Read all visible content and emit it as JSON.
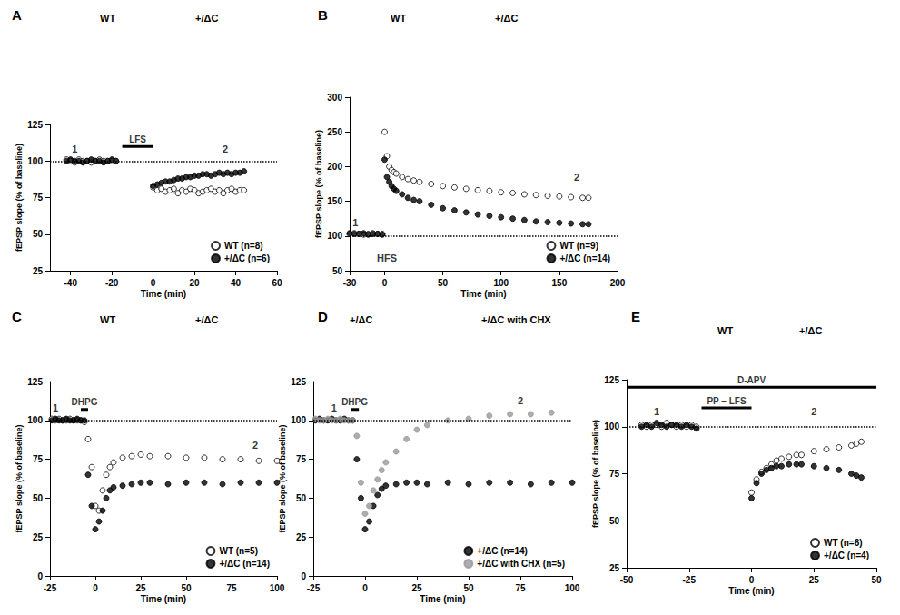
{
  "chart_data": [
    {
      "type": "scatter",
      "title": "A",
      "trace_labels": [
        "WT",
        "+/ΔC"
      ],
      "x_label": "Time (min)",
      "y_label": "fEPSP slope (% of baseline)",
      "xlim": [
        -50,
        60
      ],
      "xticks": [
        -40,
        -20,
        0,
        20,
        40,
        60
      ],
      "ylim": [
        25,
        125
      ],
      "yticks": [
        25,
        50,
        75,
        100,
        125
      ],
      "hline": 100,
      "legend": "lower right",
      "annotations": [
        {
          "text": "1",
          "x": -38,
          "y": 108
        },
        {
          "text": "2",
          "x": 35,
          "y": 108
        }
      ],
      "treatments": [
        {
          "text": "LFS",
          "x": [
            -15,
            0
          ],
          "y": 110
        }
      ],
      "x": [
        -42,
        -40,
        -38,
        -36,
        -34,
        -32,
        -30,
        -28,
        -26,
        -24,
        -22,
        -20,
        -18,
        0,
        2,
        4,
        6,
        8,
        10,
        12,
        14,
        16,
        18,
        20,
        22,
        24,
        26,
        28,
        30,
        32,
        34,
        36,
        38,
        40,
        42,
        44
      ],
      "series": [
        {
          "name": "WT (n=8)",
          "color": "#000000",
          "marker": "circle_open",
          "values": [
            101,
            100,
            99,
            101,
            100,
            100,
            99,
            100,
            101,
            100,
            100,
            100,
            100,
            82,
            80,
            81,
            79,
            80,
            81,
            78,
            80,
            79,
            81,
            80,
            78,
            79,
            80,
            81,
            79,
            80,
            78,
            80,
            81,
            79,
            80,
            80
          ]
        },
        {
          "name": "+/ΔC (n=6)",
          "color": "#000000",
          "marker": "circle",
          "values": [
            100,
            101,
            100,
            100,
            99,
            100,
            101,
            100,
            100,
            99,
            100,
            101,
            100,
            83,
            84,
            85,
            86,
            86,
            87,
            88,
            88,
            89,
            89,
            90,
            90,
            91,
            91,
            90,
            91,
            92,
            91,
            92,
            91,
            92,
            92,
            93
          ]
        }
      ]
    },
    {
      "type": "scatter",
      "title": "B",
      "trace_labels": [
        "WT",
        "+/ΔC"
      ],
      "x_label": "Time (min)",
      "y_label": "fEPSP slope (% of baseline)",
      "xlim": [
        -30,
        200
      ],
      "xticks": [
        -30,
        0,
        50,
        100,
        150,
        200
      ],
      "ylim": [
        50,
        300
      ],
      "yticks": [
        50,
        100,
        150,
        200,
        250,
        300
      ],
      "hline": 100,
      "legend": "lower right",
      "annotations": [
        {
          "text": "1",
          "x": -25,
          "y": 120
        },
        {
          "text": "2",
          "x": 165,
          "y": 185
        },
        {
          "text": "HFS",
          "x": 2,
          "y": 68
        }
      ],
      "treatments": [],
      "x": [
        -30,
        -26,
        -22,
        -18,
        -14,
        -10,
        -6,
        -2,
        0,
        2,
        4,
        6,
        8,
        10,
        15,
        20,
        25,
        30,
        40,
        50,
        60,
        70,
        80,
        90,
        100,
        110,
        120,
        130,
        140,
        150,
        160,
        170,
        175
      ],
      "series": [
        {
          "name": "WT (n=9)",
          "color": "#000000",
          "marker": "circle_open",
          "values": [
            103,
            104,
            103,
            102,
            103,
            104,
            103,
            103,
            250,
            215,
            200,
            195,
            192,
            190,
            185,
            182,
            180,
            178,
            175,
            172,
            170,
            168,
            166,
            165,
            163,
            162,
            160,
            159,
            158,
            157,
            156,
            155,
            155
          ]
        },
        {
          "name": "+/ΔC (n=14)",
          "color": "#000000",
          "marker": "circle",
          "values": [
            104,
            103,
            103,
            104,
            102,
            103,
            103,
            102,
            210,
            185,
            178,
            172,
            168,
            165,
            160,
            155,
            152,
            150,
            145,
            140,
            137,
            134,
            131,
            129,
            127,
            125,
            123,
            121,
            120,
            119,
            118,
            117,
            117
          ]
        }
      ]
    },
    {
      "type": "scatter",
      "title": "C",
      "trace_labels": [
        "WT",
        "+/ΔC"
      ],
      "x_label": "Time (min)",
      "y_label": "fEPSP slope (% of baseline)",
      "xlim": [
        -25,
        100
      ],
      "xticks": [
        -25,
        0,
        25,
        50,
        75,
        100
      ],
      "ylim": [
        0,
        125
      ],
      "yticks": [
        0,
        25,
        50,
        75,
        100,
        125
      ],
      "hline": 100,
      "legend": "lower right",
      "annotations": [
        {
          "text": "1",
          "x": -22,
          "y": 108
        },
        {
          "text": "2",
          "x": 88,
          "y": 84
        }
      ],
      "treatments": [
        {
          "text": "DHPG",
          "x": [
            -8,
            -4
          ],
          "y": 107
        }
      ],
      "x": [
        -24,
        -22,
        -20,
        -18,
        -16,
        -14,
        -12,
        -10,
        -8,
        -6,
        -4,
        -2,
        0,
        2,
        4,
        6,
        8,
        10,
        15,
        20,
        25,
        30,
        40,
        50,
        60,
        70,
        80,
        90,
        100
      ],
      "series": [
        {
          "name": "WT (n=5)",
          "color": "#000000",
          "marker": "circle_open",
          "values": [
            101,
            100,
            101,
            100,
            100,
            101,
            100,
            100,
            100,
            99,
            88,
            70,
            45,
            42,
            55,
            65,
            70,
            73,
            76,
            77,
            78,
            77,
            77,
            76,
            76,
            75,
            75,
            74,
            74
          ]
        },
        {
          "name": "+/ΔC (n=14)",
          "color": "#000000",
          "marker": "circle",
          "values": [
            100,
            101,
            100,
            100,
            101,
            100,
            100,
            101,
            100,
            100,
            65,
            45,
            30,
            35,
            42,
            50,
            55,
            57,
            58,
            59,
            60,
            60,
            59,
            60,
            60,
            59,
            60,
            60,
            60
          ]
        }
      ]
    },
    {
      "type": "scatter",
      "title": "D",
      "trace_labels": [
        "+/ΔC",
        "+/ΔC with CHX"
      ],
      "x_label": "Time (min)",
      "y_label": "fEPSP slope (% of baseline)",
      "xlim": [
        -25,
        100
      ],
      "xticks": [
        -25,
        0,
        25,
        50,
        75,
        100
      ],
      "ylim": [
        0,
        125
      ],
      "yticks": [
        0,
        25,
        50,
        75,
        100,
        125
      ],
      "hline": 100,
      "legend": "lower right",
      "annotations": [
        {
          "text": "1",
          "x": -15,
          "y": 108
        },
        {
          "text": "2",
          "x": 75,
          "y": 113
        }
      ],
      "treatments": [
        {
          "text": "DHPG",
          "x": [
            -7,
            -3
          ],
          "y": 107
        }
      ],
      "x": [
        -24,
        -22,
        -20,
        -18,
        -16,
        -14,
        -12,
        -10,
        -8,
        -6,
        -4,
        -2,
        0,
        2,
        4,
        6,
        8,
        10,
        15,
        20,
        25,
        30,
        40,
        50,
        60,
        70,
        80,
        90,
        100
      ],
      "series": [
        {
          "name": "+/ΔC (n=14)",
          "color": "#000000",
          "marker": "circle",
          "values": [
            100,
            101,
            100,
            100,
            101,
            100,
            100,
            101,
            100,
            100,
            75,
            50,
            30,
            35,
            45,
            52,
            56,
            58,
            59,
            60,
            60,
            59,
            60,
            59,
            60,
            60,
            59,
            60,
            60
          ]
        },
        {
          "name": "+/ΔC with CHX (n=5)",
          "color": "#999999",
          "marker": "circle",
          "values": [
            101,
            100,
            100,
            101,
            100,
            100,
            101,
            100,
            100,
            100,
            90,
            60,
            40,
            45,
            55,
            62,
            68,
            73,
            80,
            88,
            94,
            97,
            100,
            101,
            103,
            104,
            104,
            105,
            null
          ]
        }
      ]
    },
    {
      "type": "scatter",
      "title": "E",
      "trace_labels": [
        "WT",
        "+/ΔC"
      ],
      "x_label": "Time (min)",
      "y_label": "fEPSP slope (% of baseline)",
      "xlim": [
        -50,
        50
      ],
      "xticks": [
        -50,
        -25,
        0,
        25,
        50
      ],
      "ylim": [
        25,
        125
      ],
      "yticks": [
        25,
        50,
        75,
        100,
        125
      ],
      "hline": 100,
      "legend": "lower right",
      "annotations": [
        {
          "text": "1",
          "x": -38,
          "y": 108
        },
        {
          "text": "2",
          "x": 25,
          "y": 108
        }
      ],
      "treatments": [
        {
          "text": "D-APV",
          "x": [
            -50,
            50
          ],
          "y": 121
        },
        {
          "text": "PP – LFS",
          "x": [
            -20,
            0
          ],
          "y": 110
        }
      ],
      "x": [
        -44,
        -42,
        -40,
        -38,
        -36,
        -34,
        -32,
        -30,
        -28,
        -26,
        -24,
        -22,
        0,
        2,
        4,
        6,
        8,
        10,
        12,
        15,
        18,
        20,
        25,
        30,
        35,
        40,
        42,
        44
      ],
      "series": [
        {
          "name": "WT (n=6)",
          "color": "#000000",
          "marker": "circle_open",
          "values": [
            101,
            100,
            101,
            101,
            100,
            102,
            101,
            100,
            101,
            100,
            101,
            100,
            65,
            72,
            76,
            78,
            80,
            82,
            83,
            84,
            85,
            85,
            87,
            88,
            89,
            90,
            91,
            92
          ]
        },
        {
          "name": "+/ΔC (n=4)",
          "color": "#000000",
          "marker": "circle",
          "values": [
            100,
            101,
            100,
            102,
            101,
            100,
            101,
            101,
            100,
            101,
            100,
            99,
            62,
            70,
            75,
            77,
            78,
            79,
            79,
            80,
            80,
            80,
            79,
            78,
            77,
            75,
            74,
            73
          ]
        }
      ]
    }
  ]
}
